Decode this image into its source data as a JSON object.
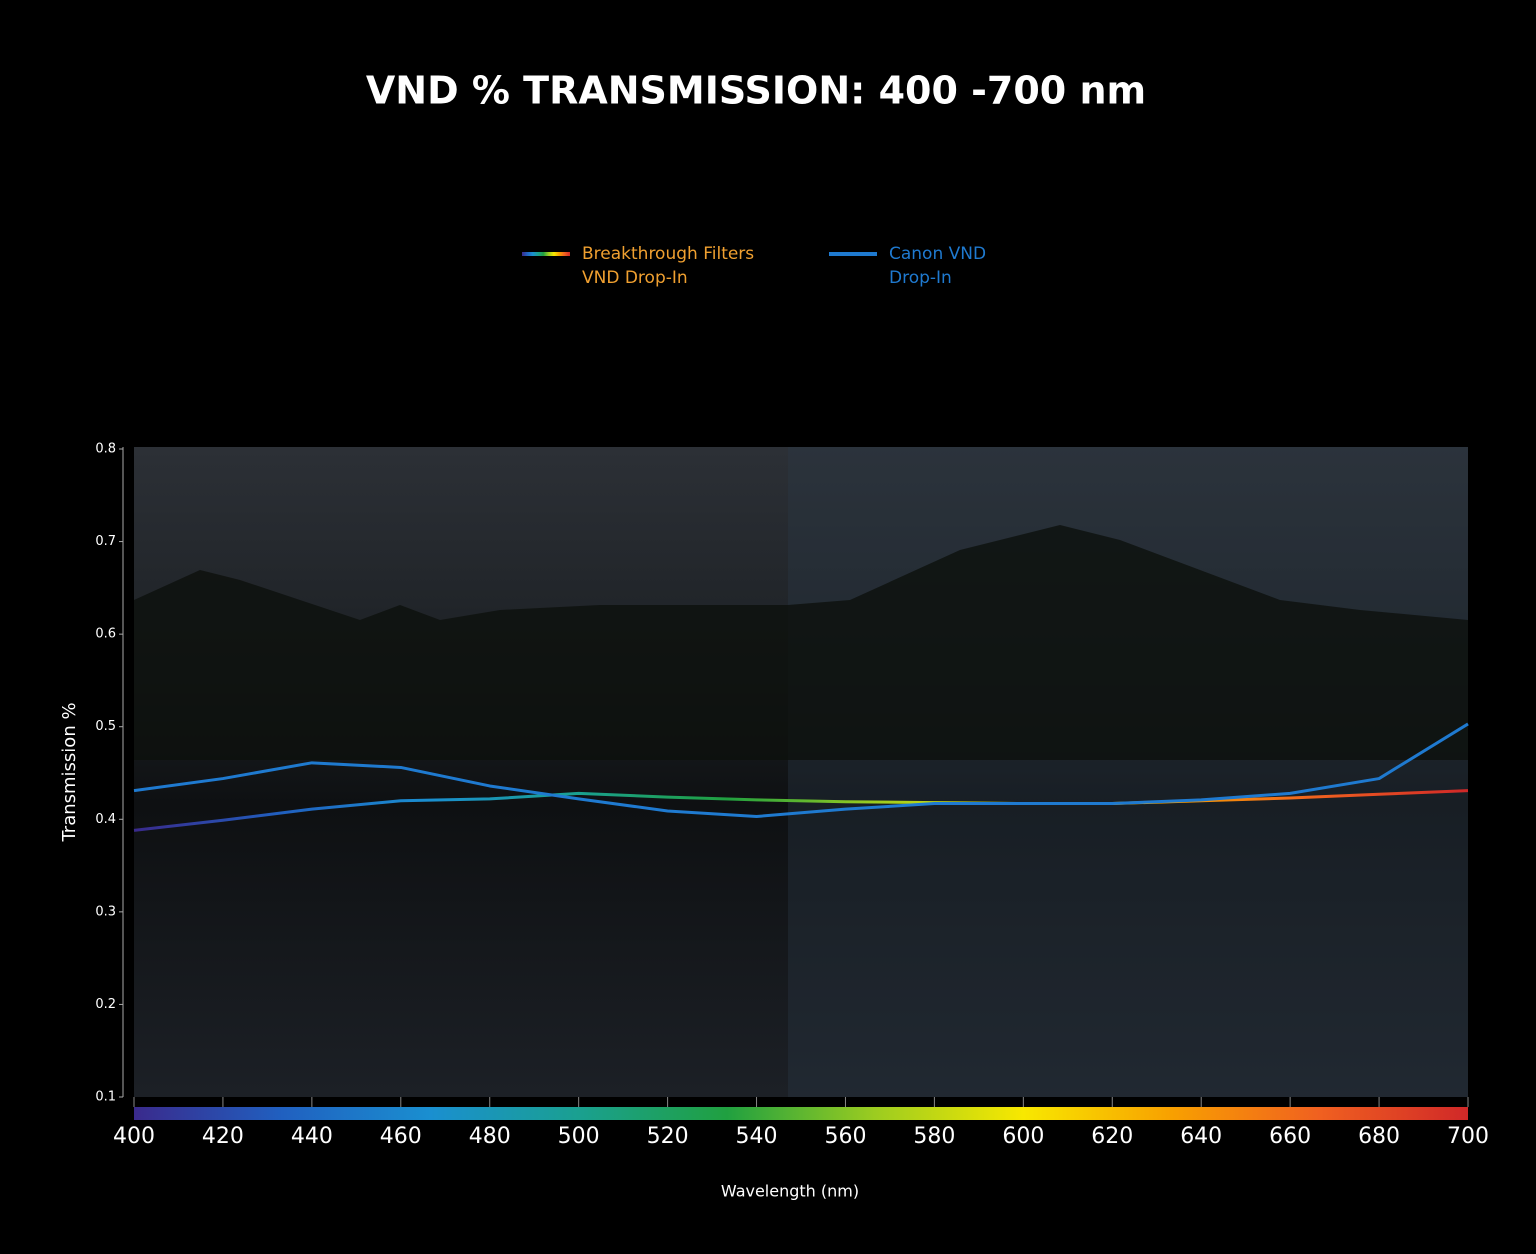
{
  "chart_data": {
    "type": "line",
    "title": "VND % TRANSMISSION: 400 -700 nm",
    "x_label": "Wavelength (nm)",
    "y_label": "Transmission %",
    "x": [
      400,
      420,
      440,
      460,
      480,
      500,
      520,
      540,
      560,
      580,
      600,
      620,
      640,
      660,
      680,
      700
    ],
    "series": [
      {
        "name": "Breakthrough Filters VND Drop-In",
        "color": "#f0a030",
        "gradient": [
          "#3a2a8c",
          "#2060c0",
          "#1a8fd0",
          "#1aa090",
          "#20a040",
          "#9ccc20",
          "#f8e800",
          "#f8a000",
          "#f06020",
          "#d02828"
        ],
        "values": [
          0.388,
          0.399,
          0.411,
          0.42,
          0.422,
          0.428,
          0.424,
          0.421,
          0.419,
          0.418,
          0.417,
          0.417,
          0.42,
          0.423,
          0.427,
          0.431
        ]
      },
      {
        "name": "Canon VND Drop-In",
        "color": "#1f7ad0",
        "values": [
          0.431,
          0.444,
          0.461,
          0.456,
          0.436,
          0.422,
          0.409,
          0.403,
          0.411,
          0.417,
          0.417,
          0.417,
          0.421,
          0.428,
          0.444,
          0.503
        ]
      }
    ],
    "xlim": [
      400,
      700
    ],
    "xticks": [
      400,
      420,
      440,
      460,
      480,
      500,
      520,
      540,
      560,
      580,
      600,
      620,
      640,
      660,
      680,
      700
    ],
    "ylim": [
      0.1,
      0.8
    ],
    "yticks": [
      0.1,
      0.2,
      0.3,
      0.4,
      0.5,
      0.6,
      0.7,
      0.8
    ],
    "grid": false
  }
}
